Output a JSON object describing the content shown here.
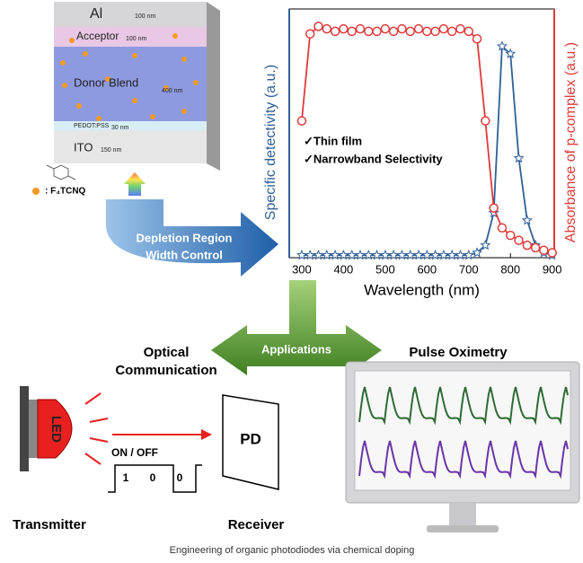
{
  "layers": [
    {
      "name": "Al",
      "thickness": "100 nm"
    },
    {
      "name": "Acceptor",
      "thickness": "100 nm"
    },
    {
      "name": "Donor Blend",
      "thickness": "400 nm"
    },
    {
      "name": "PEDOT:PSS",
      "thickness": "30 nm"
    },
    {
      "name": "ITO",
      "thickness": "150 nm"
    }
  ],
  "dopant_label": ": F₄TCNQ",
  "arrow_label": [
    "Depletion Region",
    "Width Control"
  ],
  "chart": {
    "type": "line",
    "xlabel": "Wavelength (nm)",
    "ylabel": "Specific detectivity (a.u.)",
    "y2label": "Absorbance of p-complex (a.u.)",
    "annotations": [
      "✓Thin film",
      "✓Narrowband Selectivity"
    ],
    "x": [
      300,
      320,
      340,
      360,
      380,
      400,
      420,
      440,
      460,
      480,
      500,
      520,
      540,
      560,
      580,
      600,
      620,
      640,
      660,
      680,
      700,
      720,
      740,
      760,
      780,
      800,
      820,
      840,
      860,
      880,
      900
    ],
    "series": [
      {
        "color": "#2f5f96",
        "marker": "star",
        "values": [
          0.01,
          0.01,
          0.01,
          0.01,
          0.01,
          0.01,
          0.01,
          0.01,
          0.01,
          0.01,
          0.01,
          0.01,
          0.01,
          0.01,
          0.01,
          0.01,
          0.01,
          0.01,
          0.01,
          0.01,
          0.01,
          0.02,
          0.05,
          0.18,
          0.85,
          0.82,
          0.4,
          0.15,
          0.05,
          0.02,
          0.01
        ]
      },
      {
        "color": "#e03a3a",
        "marker": "circle",
        "axis": "y2",
        "values": [
          0.55,
          0.9,
          0.93,
          0.92,
          0.91,
          0.92,
          0.91,
          0.92,
          0.91,
          0.91,
          0.92,
          0.91,
          0.92,
          0.91,
          0.92,
          0.91,
          0.91,
          0.92,
          0.91,
          0.92,
          0.91,
          0.88,
          0.55,
          0.2,
          0.12,
          0.09,
          0.07,
          0.05,
          0.04,
          0.03,
          0.02
        ]
      }
    ],
    "xlim": [
      270,
      905
    ],
    "xticks": [
      300,
      400,
      500,
      600,
      700,
      800,
      900
    ],
    "ylim": [
      0,
      1
    ],
    "y2lim": [
      0,
      1
    ]
  },
  "applications_label": "Applications",
  "left_title": [
    "Optical",
    "Communication"
  ],
  "right_title": "Pulse Oximetry",
  "led_label": "LED",
  "onoff_label": "ON / OFF",
  "bits": [
    1,
    0,
    0
  ],
  "transmitter_label": "Transmitter",
  "pd_label": "PD",
  "receiver_label": "Receiver",
  "caption": "Engineering of organic photodiodes via chemical doping"
}
